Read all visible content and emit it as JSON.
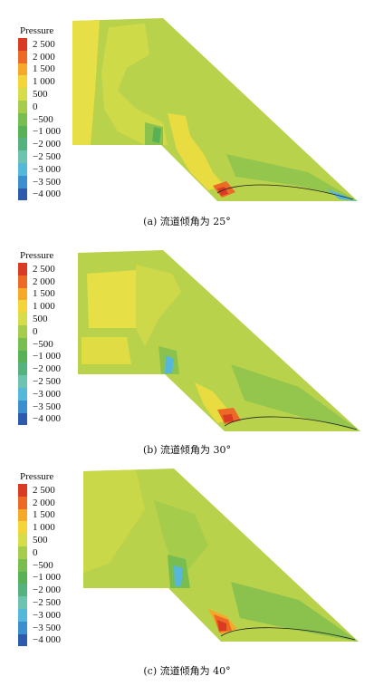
{
  "legend": {
    "title": "Pressure",
    "labels": [
      "2 500",
      "2 000",
      "1 500",
      "1 000",
      "500",
      "0",
      "−500",
      "−1 000",
      "−2 000",
      "−2 500",
      "−3 000",
      "−3 500",
      "−4 000"
    ],
    "colors": [
      "#d93a22",
      "#ec6a26",
      "#f6a829",
      "#f3d53a",
      "#d5de4a",
      "#a6cc4c",
      "#78bd4f",
      "#58b156",
      "#55b27e",
      "#6cc3b0",
      "#55b8da",
      "#3b8fcf",
      "#2e5aae"
    ]
  },
  "captions": {
    "a": "(a) 流道倾角为 25°",
    "b": "(b) 流道倾角为 30°",
    "c": "(c) 流道倾角为 40°"
  }
}
